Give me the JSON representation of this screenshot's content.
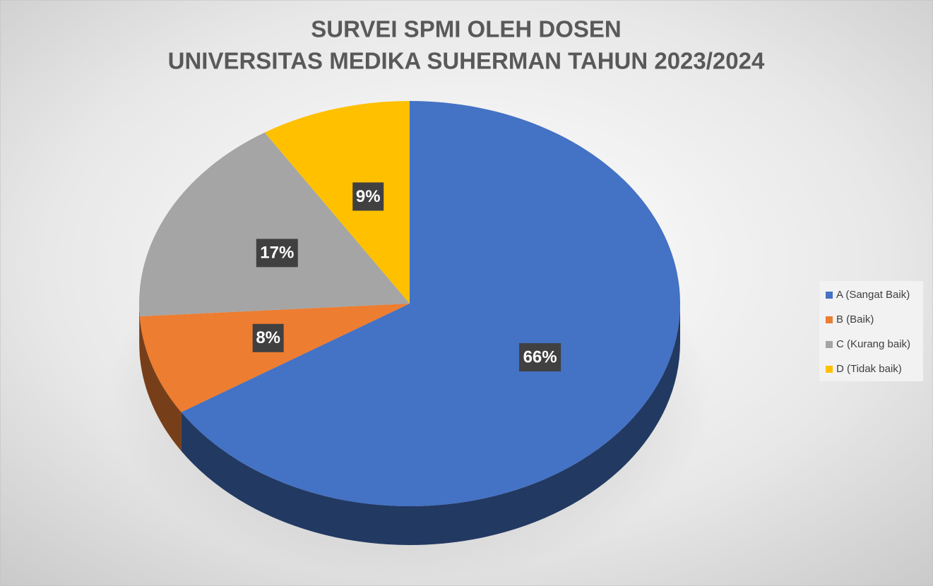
{
  "chart_data": {
    "type": "pie",
    "title": [
      "SURVEI SPMI OLEH DOSEN",
      "UNIVERSITAS MEDIKA SUHERMAN  TAHUN 2023/2024"
    ],
    "categories": [
      "A (Sangat Baik)",
      "B (Baik)",
      "C (Kurang baik)",
      "D (Tidak baik)"
    ],
    "values": [
      66,
      8,
      17,
      9
    ],
    "value_labels": [
      "66%",
      "8%",
      "17%",
      "9%"
    ],
    "colors": [
      "#4472c4",
      "#ed7d31",
      "#a5a5a5",
      "#ffc000"
    ],
    "legend": "right"
  }
}
